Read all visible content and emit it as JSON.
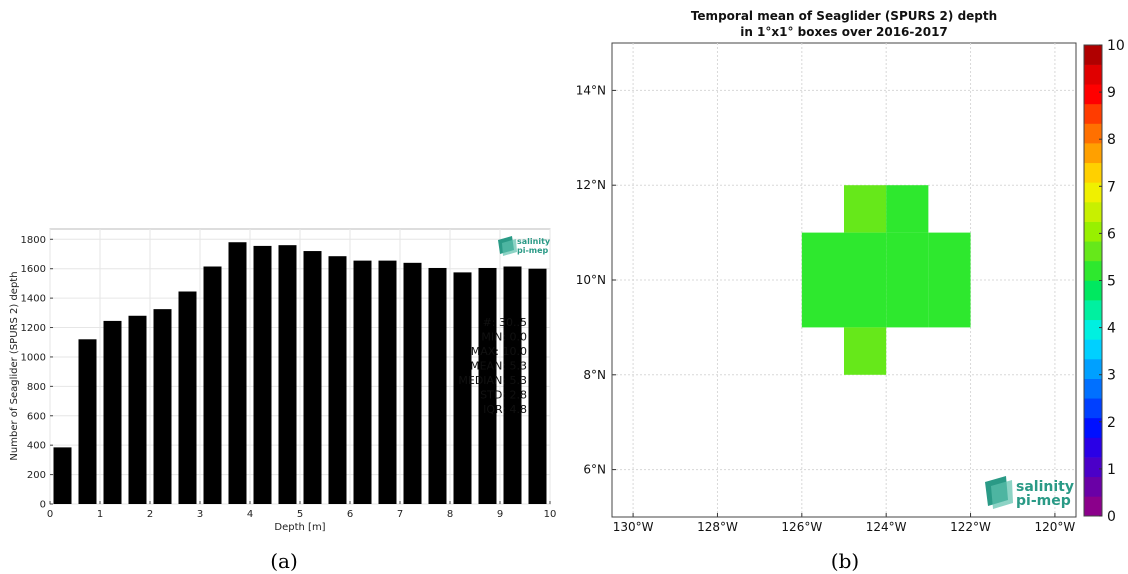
{
  "chart_data": [
    {
      "type": "bar",
      "panel": "(a)",
      "title": "",
      "xlabel": "Depth [m]",
      "ylabel": "Number of Seaglider (SPURS 2) depth",
      "xlim": [
        0,
        10
      ],
      "ylim": [
        0,
        1870
      ],
      "xticks": [
        "0",
        "1",
        "2",
        "3",
        "4",
        "5",
        "6",
        "7",
        "8",
        "9",
        "10"
      ],
      "yticks": [
        "0",
        "200",
        "400",
        "600",
        "800",
        "1000",
        "1200",
        "1400",
        "1600",
        "1800"
      ],
      "x": [
        0.25,
        0.75,
        1.25,
        1.75,
        2.25,
        2.75,
        3.25,
        3.75,
        4.25,
        4.75,
        5.25,
        5.75,
        6.25,
        6.75,
        7.25,
        7.75,
        8.25,
        8.75,
        9.25,
        9.75
      ],
      "values": [
        385,
        1120,
        1245,
        1280,
        1325,
        1445,
        1615,
        1780,
        1755,
        1760,
        1720,
        1685,
        1655,
        1655,
        1640,
        1605,
        1575,
        1605,
        1615,
        1600
      ],
      "grid": true,
      "stats_text": [
        "#: 30..5",
        "MIN: 0.0",
        "MAX: 10.0",
        "MEAN: 5.3",
        "MEDIAN: 5.3",
        "STD: 2.8",
        "IQR: 4.8"
      ],
      "logo": [
        "salinity",
        "pi-mep"
      ]
    },
    {
      "type": "heatmap",
      "panel": "(b)",
      "title": "Temporal mean of Seaglider (SPURS 2) depth",
      "subtitle": "in 1°x1° boxes over 2016-2017",
      "xlim": [
        -130.5,
        -119.5
      ],
      "ylim": [
        5,
        15
      ],
      "xticks": [
        "130°W",
        "128°W",
        "126°W",
        "124°W",
        "122°W",
        "120°W"
      ],
      "yticks": [
        "6°N",
        "8°N",
        "10°N",
        "12°N",
        "14°N"
      ],
      "cells": [
        {
          "lon0": -125,
          "lon1": -124,
          "lat0": 11,
          "lat1": 12,
          "value": 5.7
        },
        {
          "lon0": -124,
          "lon1": -123,
          "lat0": 11,
          "lat1": 12,
          "value": 5.3
        },
        {
          "lon0": -126,
          "lon1": -125,
          "lat0": 10,
          "lat1": 11,
          "value": 5.3
        },
        {
          "lon0": -125,
          "lon1": -124,
          "lat0": 10,
          "lat1": 11,
          "value": 5.3
        },
        {
          "lon0": -124,
          "lon1": -123,
          "lat0": 10,
          "lat1": 11,
          "value": 5.3
        },
        {
          "lon0": -123,
          "lon1": -122,
          "lat0": 10,
          "lat1": 11,
          "value": 5.3
        },
        {
          "lon0": -126,
          "lon1": -125,
          "lat0": 9,
          "lat1": 10,
          "value": 5.3
        },
        {
          "lon0": -125,
          "lon1": -124,
          "lat0": 9,
          "lat1": 10,
          "value": 5.3
        },
        {
          "lon0": -124,
          "lon1": -123,
          "lat0": 9,
          "lat1": 10,
          "value": 5.3
        },
        {
          "lon0": -123,
          "lon1": -122,
          "lat0": 9,
          "lat1": 10,
          "value": 5.3
        },
        {
          "lon0": -125,
          "lon1": -124,
          "lat0": 8,
          "lat1": 9,
          "value": 5.7
        }
      ],
      "colorbar": {
        "ticks": [
          "0",
          "1",
          "2",
          "3",
          "4",
          "5",
          "6",
          "7",
          "8",
          "9",
          "10"
        ],
        "colors": [
          "#8b008b",
          "#6a00a6",
          "#4b00c8",
          "#2a00e6",
          "#0010ff",
          "#0040ff",
          "#0070ff",
          "#00a0ff",
          "#00d0ff",
          "#00f0e0",
          "#00f0a0",
          "#00e860",
          "#2ee82e",
          "#66e81a",
          "#98f000",
          "#c8f000",
          "#f0f000",
          "#ffd000",
          "#ffa000",
          "#ff7000",
          "#ff3c00",
          "#ff0000",
          "#e00000",
          "#b00000"
        ]
      },
      "grid": true,
      "logo": [
        "salinity",
        "pi-mep"
      ]
    }
  ],
  "captions": [
    "(a)",
    "(b)"
  ]
}
